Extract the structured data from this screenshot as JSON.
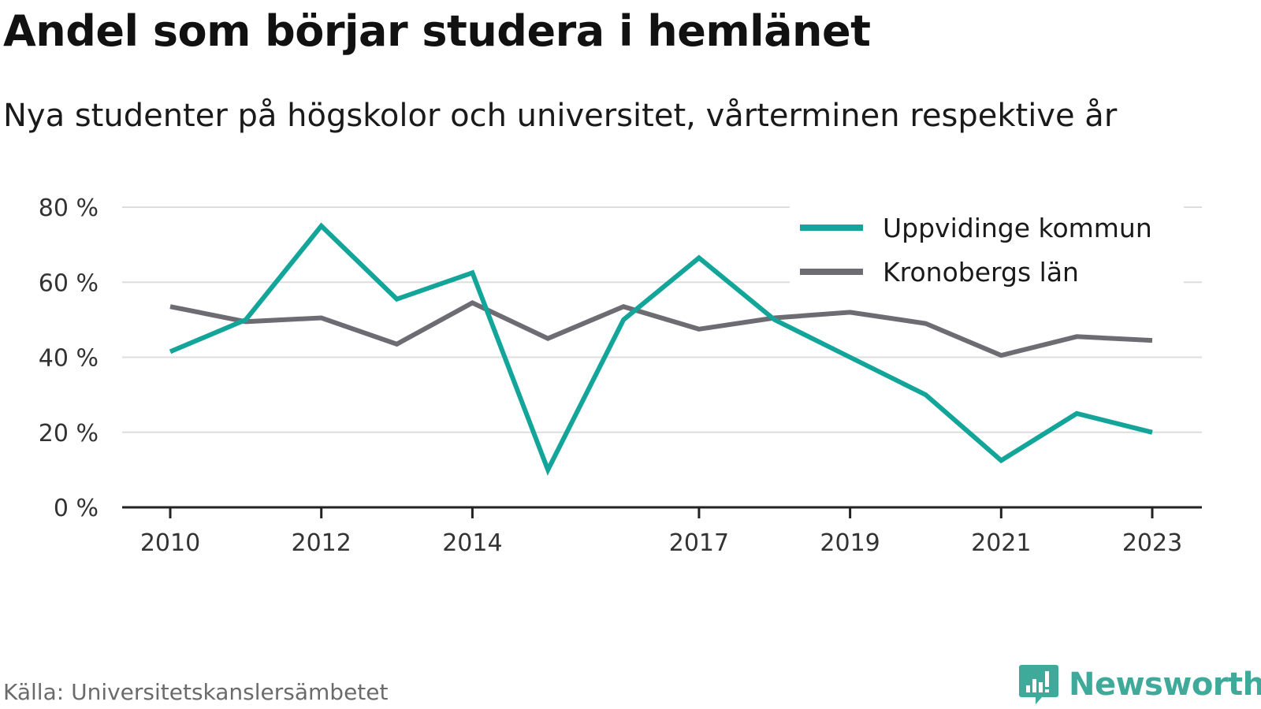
{
  "title": "Andel som börjar studera i hemlänet",
  "subtitle": "Nya studenter på högskolor och universitet, vårterminen respektive år",
  "source": "Källa: Universitetskanslersämbetet",
  "brand": {
    "name": "Newsworthy",
    "icon": "bar-chart-speech-bubble-icon",
    "color": "#3fa99a"
  },
  "colors": {
    "series1": "#13a599",
    "series2": "#6e6c73",
    "grid": "#dddddd",
    "axis": "#222222"
  },
  "chart_data": {
    "type": "line",
    "x": [
      2010,
      2011,
      2012,
      2013,
      2014,
      2015,
      2016,
      2017,
      2018,
      2019,
      2020,
      2021,
      2022,
      2023
    ],
    "x_tick_labels": [
      "2010",
      "2012",
      "2014",
      "2017",
      "2019",
      "2021",
      "2023"
    ],
    "x_tick_values": [
      2010,
      2012,
      2014,
      2017,
      2019,
      2021,
      2023
    ],
    "y_tick_labels": [
      "0 %",
      "20 %",
      "40 %",
      "60 %",
      "80 %"
    ],
    "y_tick_values": [
      0,
      20,
      40,
      60,
      80
    ],
    "ylim": [
      0,
      80
    ],
    "grid": true,
    "legend_position": "top-right",
    "series": [
      {
        "name": "Uppvidinge kommun",
        "color": "#13a599",
        "values": [
          41.5,
          50,
          75,
          55.5,
          62.5,
          10,
          50,
          66.5,
          50,
          40,
          30,
          12.5,
          25,
          20
        ]
      },
      {
        "name": "Kronobergs län",
        "color": "#6e6c73",
        "values": [
          53.5,
          49.5,
          50.5,
          43.5,
          54.5,
          45,
          53.5,
          47.5,
          50.5,
          52,
          49,
          40.5,
          45.5,
          44.5
        ]
      }
    ]
  }
}
